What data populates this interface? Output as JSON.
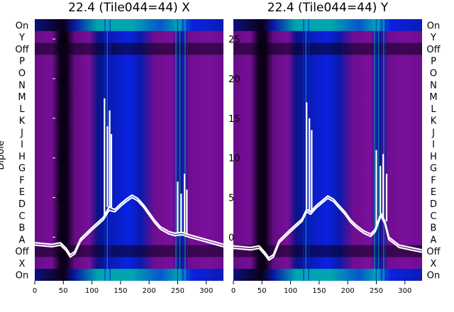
{
  "chart_data": [
    {
      "type": "heatmap",
      "title": "22.4 (Tile044=44) X",
      "ylabel": "Dipole",
      "xlim": [
        0,
        330
      ],
      "ylim": [
        -5.5,
        27.5
      ],
      "x_ticks": [
        0,
        50,
        100,
        150,
        200,
        250,
        300
      ],
      "y_ticks": [
        0,
        5,
        10,
        15,
        20,
        25
      ],
      "row_labels": [
        "On",
        "Y",
        "Off",
        "P",
        "O",
        "N",
        "M",
        "L",
        "K",
        "J",
        "I",
        "H",
        "G",
        "F",
        "E",
        "D",
        "C",
        "B",
        "A",
        "Off",
        "X",
        "On"
      ],
      "colors": {
        "dark": "#0a0018",
        "purple": "#7a0f9c",
        "blue": "#0a22e0",
        "teal": "#00a5b0",
        "line": "#ffffff"
      },
      "series": [
        {
          "values": [
            [
              0,
              -0.7
            ],
            [
              30,
              -0.9
            ],
            [
              45,
              -0.7
            ],
            [
              55,
              -1.4
            ],
            [
              62,
              -2.2
            ],
            [
              70,
              -1.8
            ],
            [
              80,
              -0.2
            ],
            [
              100,
              1.2
            ],
            [
              120,
              2.5
            ],
            [
              130,
              3.8
            ],
            [
              140,
              3.5
            ],
            [
              150,
              4.2
            ],
            [
              160,
              4.8
            ],
            [
              170,
              5.3
            ],
            [
              180,
              4.9
            ],
            [
              190,
              4.1
            ],
            [
              200,
              3.1
            ],
            [
              210,
              2.1
            ],
            [
              220,
              1.3
            ],
            [
              235,
              0.7
            ],
            [
              245,
              0.5
            ],
            [
              258,
              0.6
            ],
            [
              270,
              0.3
            ],
            [
              290,
              -0.1
            ],
            [
              310,
              -0.5
            ],
            [
              330,
              -0.9
            ]
          ]
        },
        {
          "values": [
            [
              0,
              -1.0
            ],
            [
              30,
              -1.2
            ],
            [
              45,
              -1.0
            ],
            [
              55,
              -1.7
            ],
            [
              62,
              -2.5
            ],
            [
              70,
              -2.1
            ],
            [
              80,
              -0.5
            ],
            [
              100,
              0.9
            ],
            [
              120,
              2.2
            ],
            [
              130,
              3.4
            ],
            [
              140,
              3.2
            ],
            [
              150,
              3.9
            ],
            [
              160,
              4.5
            ],
            [
              170,
              5.0
            ],
            [
              180,
              4.6
            ],
            [
              190,
              3.8
            ],
            [
              200,
              2.8
            ],
            [
              210,
              1.8
            ],
            [
              220,
              1.0
            ],
            [
              235,
              0.4
            ],
            [
              245,
              0.2
            ],
            [
              258,
              0.3
            ],
            [
              270,
              0.0
            ],
            [
              290,
              -0.4
            ],
            [
              310,
              -0.8
            ],
            [
              330,
              -1.2
            ]
          ]
        }
      ],
      "spikes": [
        [
          122,
          17.5
        ],
        [
          127,
          14.0
        ],
        [
          131,
          16.0
        ],
        [
          134,
          13.0
        ],
        [
          250,
          7.0
        ],
        [
          256,
          5.5
        ],
        [
          262,
          8.0
        ],
        [
          266,
          6.0
        ]
      ]
    },
    {
      "type": "heatmap",
      "title": "22.4 (Tile044=44) Y",
      "ylabel": "",
      "xlim": [
        0,
        330
      ],
      "ylim": [
        -5.5,
        27.5
      ],
      "x_ticks": [
        0,
        50,
        100,
        150,
        200,
        250,
        300
      ],
      "y_ticks": [
        0,
        5,
        10,
        15,
        20,
        25
      ],
      "row_labels": [
        "On",
        "Y",
        "Off",
        "P",
        "O",
        "N",
        "M",
        "L",
        "K",
        "J",
        "I",
        "H",
        "G",
        "F",
        "E",
        "D",
        "C",
        "B",
        "A",
        "Off",
        "X",
        "On"
      ],
      "colors": {
        "dark": "#0a0018",
        "purple": "#7a0f9c",
        "blue": "#0a22e0",
        "teal": "#00a5b0",
        "line": "#ffffff"
      },
      "series": [
        {
          "values": [
            [
              0,
              -1.1
            ],
            [
              30,
              -1.3
            ],
            [
              45,
              -1.1
            ],
            [
              55,
              -1.9
            ],
            [
              62,
              -2.6
            ],
            [
              70,
              -2.2
            ],
            [
              80,
              -0.4
            ],
            [
              100,
              1.0
            ],
            [
              120,
              2.3
            ],
            [
              128,
              3.5
            ],
            [
              135,
              3.2
            ],
            [
              145,
              4.0
            ],
            [
              155,
              4.6
            ],
            [
              165,
              5.2
            ],
            [
              175,
              4.8
            ],
            [
              185,
              4.0
            ],
            [
              195,
              3.2
            ],
            [
              205,
              2.2
            ],
            [
              215,
              1.5
            ],
            [
              228,
              0.8
            ],
            [
              240,
              0.4
            ],
            [
              248,
              1.0
            ],
            [
              258,
              3.0
            ],
            [
              265,
              2.0
            ],
            [
              272,
              0.0
            ],
            [
              290,
              -1.0
            ],
            [
              310,
              -1.3
            ],
            [
              330,
              -1.6
            ]
          ]
        },
        {
          "values": [
            [
              0,
              -1.4
            ],
            [
              30,
              -1.6
            ],
            [
              45,
              -1.4
            ],
            [
              55,
              -2.2
            ],
            [
              62,
              -2.9
            ],
            [
              70,
              -2.5
            ],
            [
              80,
              -0.7
            ],
            [
              100,
              0.7
            ],
            [
              120,
              2.0
            ],
            [
              128,
              3.2
            ],
            [
              135,
              2.9
            ],
            [
              145,
              3.7
            ],
            [
              155,
              4.3
            ],
            [
              165,
              4.9
            ],
            [
              175,
              4.5
            ],
            [
              185,
              3.7
            ],
            [
              195,
              2.9
            ],
            [
              205,
              1.9
            ],
            [
              215,
              1.2
            ],
            [
              228,
              0.5
            ],
            [
              240,
              0.1
            ],
            [
              248,
              0.7
            ],
            [
              258,
              2.7
            ],
            [
              265,
              1.7
            ],
            [
              272,
              -0.3
            ],
            [
              290,
              -1.3
            ],
            [
              310,
              -1.6
            ],
            [
              330,
              -1.9
            ]
          ]
        }
      ],
      "spikes": [
        [
          128,
          17.0
        ],
        [
          133,
          15.0
        ],
        [
          137,
          13.5
        ],
        [
          250,
          11.0
        ],
        [
          257,
          9.0
        ],
        [
          262,
          10.5
        ],
        [
          268,
          8.0
        ]
      ]
    }
  ]
}
